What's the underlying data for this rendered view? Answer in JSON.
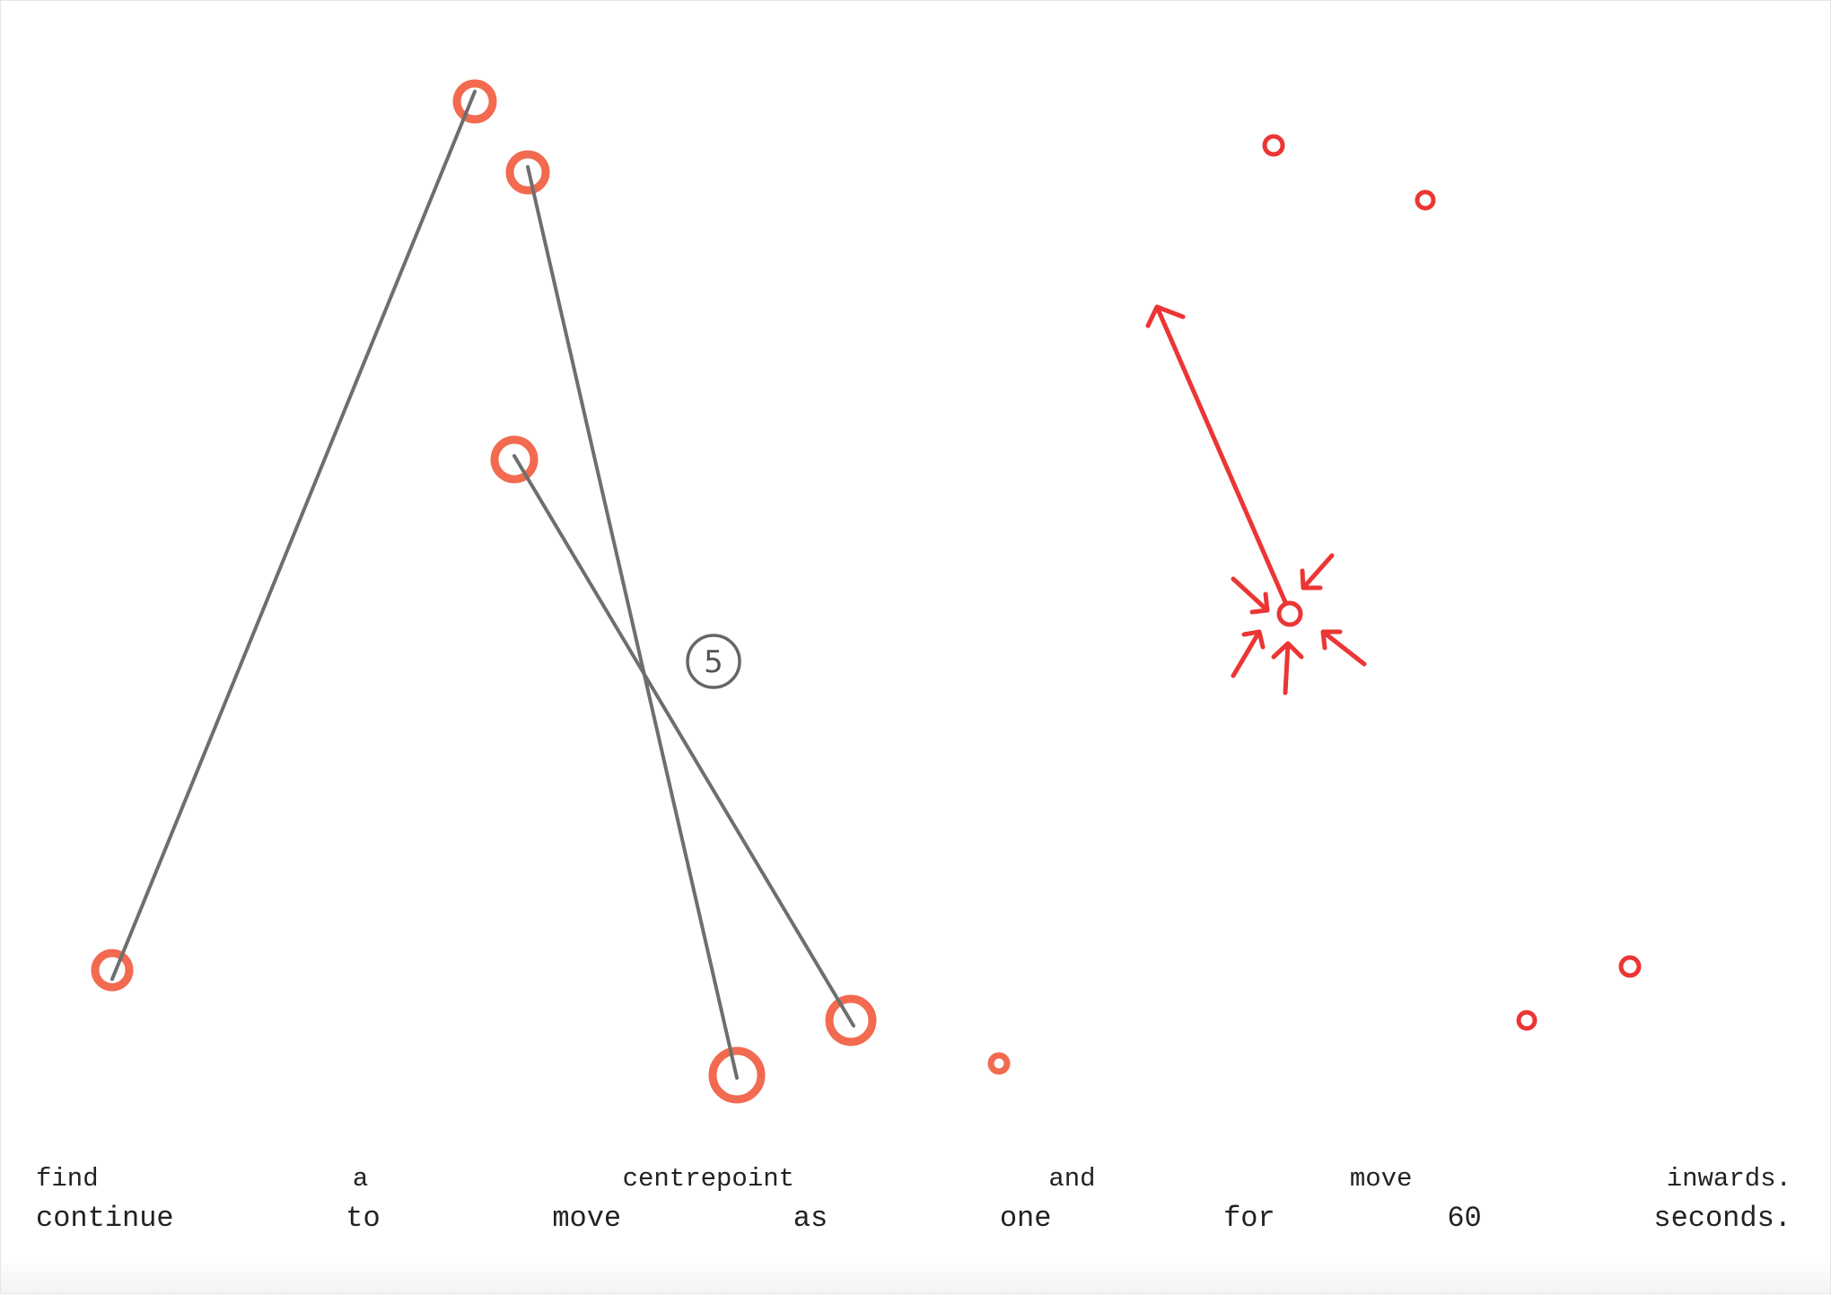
{
  "label": "5",
  "text": {
    "line1": [
      "find",
      "a",
      "centrepoint",
      "and",
      "move",
      "inwards."
    ],
    "line2": [
      "continue",
      "to",
      "move",
      "as",
      "one",
      "for",
      "60",
      "seconds."
    ]
  }
}
